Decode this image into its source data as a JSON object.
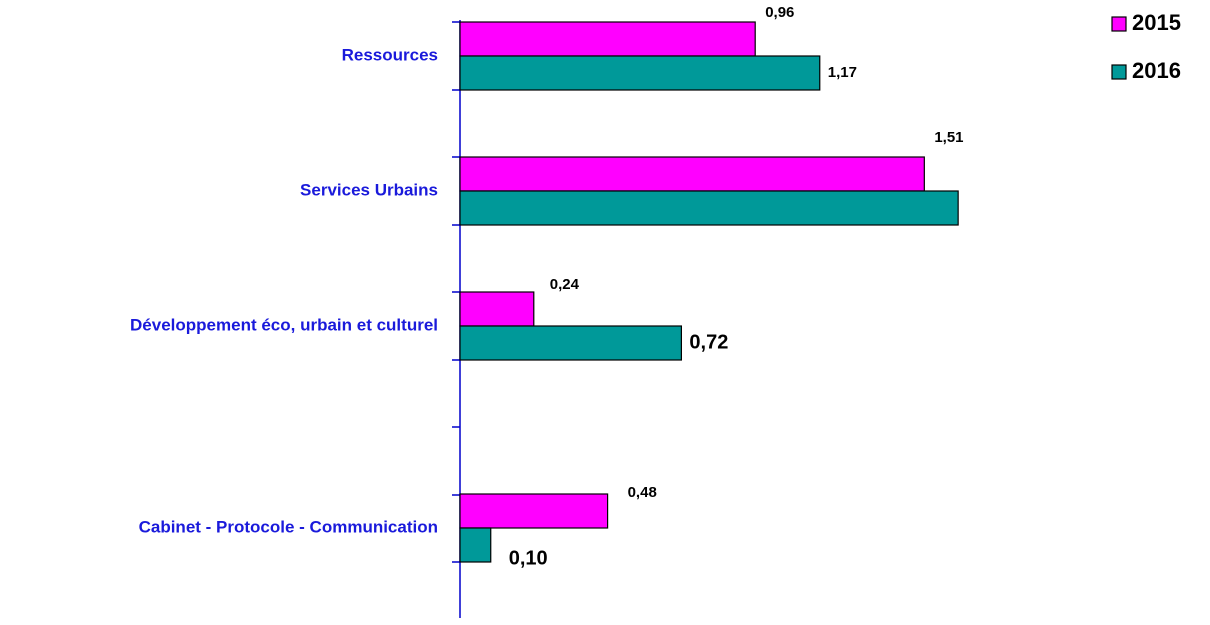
{
  "chart_data": {
    "type": "hbar",
    "categories": [
      "Ressources",
      "Services Urbains",
      "Développement éco, urbain et culturel",
      "Cabinet - Protocole - Communication"
    ],
    "series": [
      {
        "name": "2015",
        "color": "#ff00ff",
        "values": [
          0.96,
          1.51,
          0.24,
          0.48
        ],
        "value_labels": [
          "0,96",
          "1,51",
          "0,24",
          "0,48"
        ]
      },
      {
        "name": "2016",
        "color": "#009999",
        "values": [
          1.17,
          1.62,
          0.72,
          0.1
        ],
        "value_labels": [
          "1,17",
          null,
          "0,72",
          "0,10"
        ]
      }
    ],
    "xlim": [
      0,
      1.7
    ],
    "legend": "top-right"
  }
}
